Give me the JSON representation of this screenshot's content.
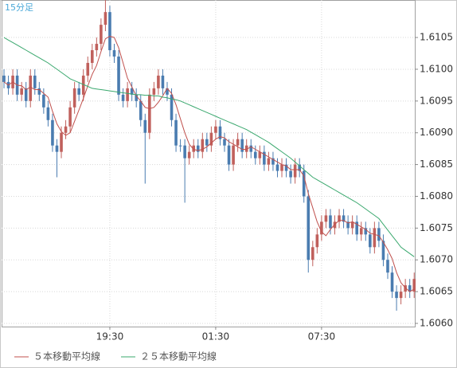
{
  "chart_data": {
    "type": "candlestick",
    "title": "15分足",
    "categories": [
      null,
      null,
      null,
      null,
      null,
      null,
      null,
      null,
      null,
      null,
      null,
      null,
      null,
      null,
      null,
      null,
      null,
      null,
      null,
      null,
      null,
      null,
      null,
      null,
      "19:30",
      null,
      null,
      null,
      null,
      null,
      null,
      null,
      null,
      null,
      null,
      null,
      null,
      null,
      null,
      null,
      null,
      null,
      null,
      null,
      null,
      null,
      null,
      null,
      "01:30",
      null,
      null,
      null,
      null,
      null,
      null,
      null,
      null,
      null,
      null,
      null,
      null,
      null,
      null,
      null,
      null,
      null,
      null,
      null,
      null,
      null,
      null,
      null,
      "07:30",
      null,
      null,
      null,
      null,
      null,
      null,
      null,
      null,
      null,
      null,
      null,
      null,
      null,
      null,
      null,
      null,
      null,
      null,
      null,
      null,
      null
    ],
    "open": [
      1.6099,
      1.6098,
      1.6097,
      1.6099,
      1.6096,
      1.6097,
      1.6095,
      1.6099,
      1.6097,
      1.6096,
      1.6094,
      1.6092,
      1.6088,
      1.6087,
      1.609,
      1.6091,
      1.6094,
      1.6097,
      1.6096,
      1.6099,
      1.6101,
      1.6103,
      1.6104,
      1.6107,
      1.6109,
      1.6103,
      1.6102,
      1.6096,
      1.6095,
      1.6097,
      1.6096,
      1.6095,
      1.6092,
      1.609,
      1.6096,
      1.6097,
      1.6099,
      1.6097,
      1.6096,
      1.6092,
      1.6088,
      1.6088,
      1.6086,
      1.6087,
      1.6088,
      1.6087,
      1.6089,
      1.6088,
      1.609,
      1.6091,
      1.6089,
      1.6088,
      1.6085,
      1.6088,
      1.6089,
      1.6087,
      1.6088,
      1.6087,
      1.6086,
      1.6087,
      1.6085,
      1.6086,
      1.6085,
      1.6084,
      1.6085,
      1.6084,
      1.6083,
      1.6085,
      1.6084,
      1.608,
      1.607,
      1.6072,
      1.6074,
      1.6076,
      1.6077,
      1.6075,
      1.6076,
      1.6077,
      1.6076,
      1.6075,
      1.6076,
      1.6074,
      1.6075,
      1.6074,
      1.6072,
      1.6075,
      1.6073,
      1.607,
      1.6068,
      1.6065,
      1.6064,
      1.6065,
      1.6066,
      1.6065
    ],
    "high": [
      1.61,
      1.6099,
      1.61,
      1.61,
      1.6098,
      1.6098,
      1.61,
      1.61,
      1.6098,
      1.6097,
      1.6095,
      1.6093,
      1.6089,
      1.6091,
      1.6092,
      1.6095,
      1.6098,
      1.6098,
      1.61,
      1.6102,
      1.6104,
      1.6105,
      1.6108,
      1.6111,
      1.611,
      1.6104,
      1.6103,
      1.6097,
      1.6098,
      1.6098,
      1.6097,
      1.6096,
      1.6093,
      1.6097,
      1.6098,
      1.61,
      1.61,
      1.6098,
      1.6097,
      1.6093,
      1.6089,
      1.6089,
      1.6088,
      1.6089,
      1.6089,
      1.609,
      1.609,
      1.6091,
      1.6092,
      1.6092,
      1.609,
      1.6089,
      1.6089,
      1.609,
      1.609,
      1.6089,
      1.6089,
      1.6088,
      1.6088,
      1.6088,
      1.6087,
      1.6087,
      1.6086,
      1.6086,
      1.6086,
      1.6085,
      1.6086,
      1.6086,
      1.6085,
      1.6081,
      1.6073,
      1.6075,
      1.6077,
      1.6078,
      1.6078,
      1.6077,
      1.6078,
      1.6078,
      1.6077,
      1.6077,
      1.6077,
      1.6076,
      1.6076,
      1.6075,
      1.6076,
      1.6076,
      1.6074,
      1.6071,
      1.6069,
      1.6066,
      1.6066,
      1.6067,
      1.6067,
      1.6068
    ],
    "low": [
      1.6097,
      1.6096,
      1.6096,
      1.6095,
      1.6095,
      1.6094,
      1.6094,
      1.6096,
      1.6095,
      1.6093,
      1.6091,
      1.6087,
      1.6083,
      1.6086,
      1.6089,
      1.609,
      1.6093,
      1.6095,
      1.6095,
      1.6098,
      1.61,
      1.6102,
      1.6103,
      1.6106,
      1.6102,
      1.6101,
      1.6095,
      1.6094,
      1.6094,
      1.6095,
      1.6094,
      1.6091,
      1.6082,
      1.6089,
      1.6095,
      1.6096,
      1.6096,
      1.6095,
      1.6091,
      1.6087,
      1.6087,
      1.6079,
      1.6085,
      1.6086,
      1.6086,
      1.6086,
      1.6087,
      1.6087,
      1.6089,
      1.6088,
      1.6087,
      1.6084,
      1.6084,
      1.6087,
      1.6086,
      1.6086,
      1.6086,
      1.6085,
      1.6085,
      1.6084,
      1.6084,
      1.6084,
      1.6083,
      1.6083,
      1.6083,
      1.6082,
      1.6082,
      1.6083,
      1.6079,
      1.6068,
      1.6069,
      1.6071,
      1.6073,
      1.6075,
      1.6074,
      1.6074,
      1.6075,
      1.6075,
      1.6074,
      1.6074,
      1.6073,
      1.6073,
      1.6073,
      1.6071,
      1.6071,
      1.6072,
      1.6069,
      1.6067,
      1.6064,
      1.6062,
      1.6063,
      1.6064,
      1.6064,
      1.6064
    ],
    "close": [
      1.6098,
      1.6097,
      1.6099,
      1.6096,
      1.6097,
      1.6095,
      1.6099,
      1.6097,
      1.6096,
      1.6094,
      1.6092,
      1.6088,
      1.6087,
      1.609,
      1.6091,
      1.6094,
      1.6097,
      1.6096,
      1.6099,
      1.6101,
      1.6103,
      1.6104,
      1.6107,
      1.6109,
      1.6103,
      1.6102,
      1.6096,
      1.6095,
      1.6097,
      1.6096,
      1.6095,
      1.6092,
      1.609,
      1.6096,
      1.6097,
      1.6099,
      1.6097,
      1.6096,
      1.6092,
      1.6088,
      1.6088,
      1.6086,
      1.6087,
      1.6088,
      1.6087,
      1.6089,
      1.6088,
      1.609,
      1.6091,
      1.6089,
      1.6088,
      1.6085,
      1.6088,
      1.6089,
      1.6087,
      1.6088,
      1.6087,
      1.6086,
      1.6087,
      1.6085,
      1.6086,
      1.6085,
      1.6084,
      1.6085,
      1.6084,
      1.6083,
      1.6085,
      1.6084,
      1.608,
      1.607,
      1.6072,
      1.6074,
      1.6076,
      1.6077,
      1.6075,
      1.6076,
      1.6077,
      1.6076,
      1.6075,
      1.6076,
      1.6074,
      1.6075,
      1.6074,
      1.6072,
      1.6075,
      1.6073,
      1.607,
      1.6068,
      1.6065,
      1.6064,
      1.6065,
      1.6066,
      1.6065,
      1.6067
    ],
    "up_color": "#c0605c",
    "down_color": "#4a7cb0",
    "series": [
      {
        "name": "５本移動平均線",
        "color": "#c0504d",
        "values": [
          1.6098,
          1.60975,
          1.6098,
          1.60975,
          1.60974,
          1.60968,
          1.60972,
          1.60968,
          1.60968,
          1.60962,
          1.60956,
          1.60934,
          1.60914,
          1.60902,
          1.60896,
          1.609,
          1.60918,
          1.60936,
          1.60954,
          1.60974,
          1.60992,
          1.61006,
          1.61028,
          1.61048,
          1.61052,
          1.6105,
          1.61034,
          1.6101,
          1.60986,
          1.60972,
          1.60958,
          1.6095,
          1.6094,
          1.60938,
          1.6094,
          1.60948,
          1.60958,
          1.6097,
          1.60962,
          1.60944,
          1.60922,
          1.609,
          1.60882,
          1.60874,
          1.60872,
          1.60874,
          1.60878,
          1.60884,
          1.6089,
          1.60894,
          1.60892,
          1.60886,
          1.60882,
          1.60878,
          1.60874,
          1.60874,
          1.60878,
          1.60874,
          1.6087,
          1.60866,
          1.60862,
          1.60858,
          1.60854,
          1.6085,
          1.60848,
          1.60842,
          1.60842,
          1.60842,
          1.60832,
          1.60804,
          1.60782,
          1.6076,
          1.60744,
          1.60738,
          1.60748,
          1.60756,
          1.60762,
          1.60762,
          1.60758,
          1.6076,
          1.60756,
          1.60752,
          1.60748,
          1.60742,
          1.6074,
          1.60738,
          1.60728,
          1.60716,
          1.60702,
          1.6068,
          1.60664,
          1.60656,
          1.6065,
          1.60654
        ]
      },
      {
        "name": "２５本移動平均線",
        "color": "#3aa86e",
        "values": [
          1.6105,
          1.61046,
          1.61042,
          1.61038,
          1.61034,
          1.6103,
          1.61026,
          1.61022,
          1.61018,
          1.61014,
          1.6101,
          1.61005,
          1.61,
          1.60995,
          1.6099,
          1.60985,
          1.60982,
          1.60979,
          1.60976,
          1.60973,
          1.6097,
          1.60969,
          1.60968,
          1.60967,
          1.60966,
          1.60965,
          1.60964,
          1.60963,
          1.60962,
          1.60961,
          1.6096,
          1.6096,
          1.60959,
          1.60959,
          1.60958,
          1.60958,
          1.60956,
          1.60955,
          1.60953,
          1.60952,
          1.6095,
          1.60947,
          1.60944,
          1.60941,
          1.60938,
          1.60935,
          1.60932,
          1.60929,
          1.60926,
          1.60923,
          1.6092,
          1.60917,
          1.60914,
          1.60911,
          1.60908,
          1.60905,
          1.60901,
          1.60897,
          1.60893,
          1.60889,
          1.60885,
          1.6088,
          1.60875,
          1.6087,
          1.60865,
          1.6086,
          1.60854,
          1.60848,
          1.60842,
          1.60836,
          1.6083,
          1.60826,
          1.60822,
          1.60818,
          1.60814,
          1.6081,
          1.60806,
          1.60802,
          1.60798,
          1.60794,
          1.6079,
          1.60785,
          1.6078,
          1.60775,
          1.6077,
          1.60765,
          1.60756,
          1.60747,
          1.60738,
          1.60729,
          1.6072,
          1.60715,
          1.6071,
          1.60705
        ]
      }
    ],
    "ylim": [
      1.60595,
      1.61109
    ],
    "yticks": [
      {
        "value": 1.606,
        "label": "1.6060"
      },
      {
        "value": 1.6065,
        "label": "1.6065"
      },
      {
        "value": 1.607,
        "label": "1.6070"
      },
      {
        "value": 1.6075,
        "label": "1.6075"
      },
      {
        "value": 1.608,
        "label": "1.6080"
      },
      {
        "value": 1.6085,
        "label": "1.6085"
      },
      {
        "value": 1.609,
        "label": "1.6090"
      },
      {
        "value": 1.6095,
        "label": "1.6095"
      },
      {
        "value": 1.61,
        "label": "1.6100"
      },
      {
        "value": 1.6105,
        "label": "1.6105"
      }
    ],
    "grid": true,
    "legend": "bottom"
  }
}
